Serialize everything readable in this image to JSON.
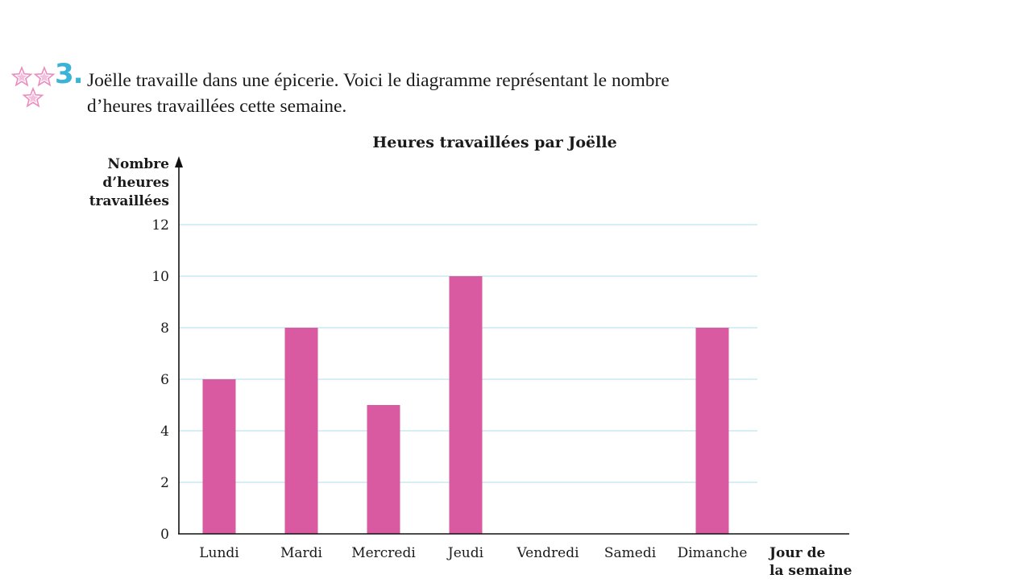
{
  "question": {
    "number": "3.",
    "difficulty_stars": 3,
    "text_line1": "Joëlle travaille dans une épicerie. Voici le diagramme représentant le nombre",
    "text_line2": "d’heures travaillées cette semaine."
  },
  "colors": {
    "bar": "#d95aa1",
    "grid": "#bfe3f2",
    "star": "#e98cbf",
    "number": "#3bb3d6"
  },
  "chart_data": {
    "type": "bar",
    "title": "Heures travaillées par Joëlle",
    "ylabel_lines": [
      "Nombre",
      "d’heures",
      "travaillées"
    ],
    "xlabel_lines": [
      "Jour de",
      "la semaine"
    ],
    "categories": [
      "Lundi",
      "Mardi",
      "Mercredi",
      "Jeudi",
      "Vendredi",
      "Samedi",
      "Dimanche"
    ],
    "values": [
      6,
      8,
      5,
      10,
      0,
      0,
      8
    ],
    "yticks": [
      0,
      2,
      4,
      6,
      8,
      10,
      12
    ],
    "ylim": [
      0,
      12
    ],
    "grid": true
  }
}
